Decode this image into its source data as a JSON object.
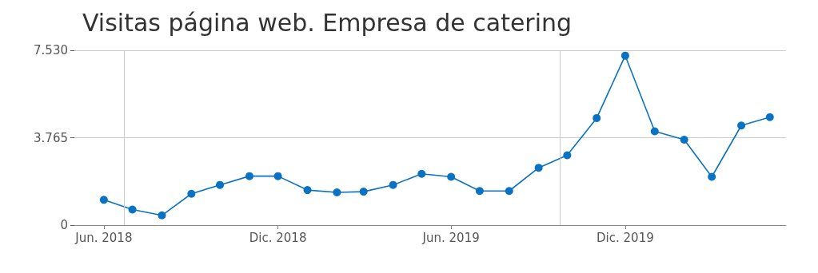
{
  "chart_data": {
    "type": "line",
    "title": "Visitas página web. Empresa de catering",
    "x": [
      "2018-06",
      "2018-07",
      "2018-08",
      "2018-09",
      "2018-10",
      "2018-11",
      "2018-12",
      "2019-01",
      "2019-02",
      "2019-03",
      "2019-04",
      "2019-05",
      "2019-06",
      "2019-07",
      "2019-08",
      "2019-09",
      "2019-10",
      "2019-11",
      "2019-12",
      "2020-01",
      "2020-02",
      "2020-03",
      "2020-04",
      "2020-05"
    ],
    "series": [
      {
        "color": "#0a72c2",
        "values": [
          1090,
          670,
          420,
          1350,
          1730,
          2110,
          2110,
          1510,
          1410,
          1440,
          1730,
          2210,
          2080,
          1470,
          1470,
          2470,
          3010,
          4610,
          7300,
          4040,
          3680,
          2080,
          4290,
          4650
        ]
      }
    ],
    "xlim": [
      "2018-05",
      "2020-05-18"
    ],
    "xticks": [
      {
        "value": "2018-06",
        "label": "Jun. 2018"
      },
      {
        "value": "2018-12",
        "label": "Dic. 2018"
      },
      {
        "value": "2019-06",
        "label": "Jun. 2019"
      },
      {
        "value": "2019-12",
        "label": "Dic. 2019"
      }
    ],
    "ylim": [
      0,
      7530
    ],
    "yticks": [
      {
        "value": 0,
        "label": "0"
      },
      {
        "value": 3765,
        "label": "3.765"
      },
      {
        "value": 7530,
        "label": "7.530"
      }
    ],
    "ref_lines": [
      {
        "axis": "x",
        "value": "2018-06-22",
        "color": "#cccccc"
      },
      {
        "axis": "x",
        "value": "2019-09-23",
        "color": "#cccccc"
      }
    ],
    "grid": "y",
    "marker": "circle",
    "line_style": "solid"
  }
}
